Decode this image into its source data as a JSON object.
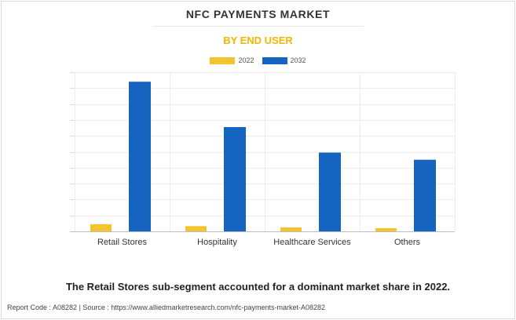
{
  "header": {
    "title": "NFC PAYMENTS MARKET",
    "subtitle": "BY END USER"
  },
  "colors": {
    "series_2022": "#f4c430",
    "series_2032": "#1565c0",
    "subtitle": "#f4b400"
  },
  "chart_data": {
    "type": "bar",
    "title": "NFC PAYMENTS MARKET",
    "subtitle": "BY END USER",
    "categories": [
      "Retail Stores",
      "Hospitality",
      "Healthcare Services",
      "Others"
    ],
    "series": [
      {
        "name": "2022",
        "values": [
          0.45,
          0.33,
          0.25,
          0.2
        ]
      },
      {
        "name": "2032",
        "values": [
          9.4,
          6.55,
          4.95,
          4.5
        ]
      }
    ],
    "ylim": [
      0,
      10
    ],
    "grid": true,
    "legend": "top-center",
    "xlabel": "",
    "ylabel": ""
  },
  "caption": "The Retail Stores sub-segment accounted for a dominant market share in 2022.",
  "footer": "Report Code : A08282  |  Source : https://www.alliedmarketresearch.com/nfc-payments-market-A08282"
}
